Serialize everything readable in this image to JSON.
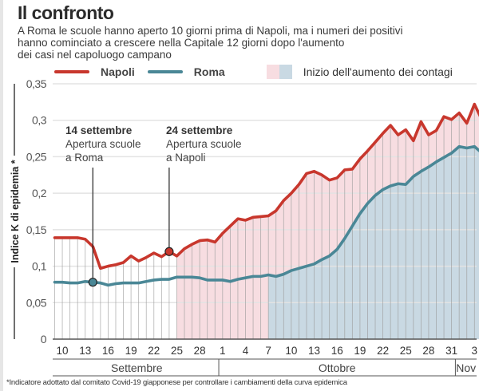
{
  "header": {
    "title": "Il confronto",
    "subtitle_lines": [
      "A Roma le scuole hanno aperto 10 giorni prima di Napoli, ma i numeri dei positivi",
      "hanno cominciato a crescere nella Capitale 12 giorni dopo l'aumento",
      "dei casi nel capoluogo campano"
    ]
  },
  "legend": {
    "napoli_label": "Napoli",
    "roma_label": "Roma",
    "shade_label": "Inizio dell'aumento dei contagi"
  },
  "colors": {
    "napoli": "#c8372d",
    "roma": "#4a8796",
    "napoli_shade": "#f7dde1",
    "roma_shade": "#c9d9e3",
    "grid": "#e3e3e3",
    "vgrid": "#9a9a9a"
  },
  "annotations": [
    {
      "date_label": "14 settembre",
      "line1": "Apertura scuole",
      "line2": "a Roma",
      "series": "Roma",
      "day_index": 5
    },
    {
      "date_label": "24 settembre",
      "line1": "Apertura scuole",
      "line2": "a Napoli",
      "series": "Napoli",
      "day_index": 15
    }
  ],
  "footnote": "*Indicatore adottato dal comitato Covid-19 giapponese per controllare i cambiamenti della curva epidemica",
  "chart_data": {
    "type": "line",
    "title": "Il confronto",
    "xlabel": "",
    "ylabel": "Indice K di epidemia *",
    "ylim": [
      0,
      0.35
    ],
    "yticks": [
      0,
      0.05,
      0.1,
      0.15,
      0.2,
      0.25,
      0.3,
      0.35
    ],
    "ytick_labels": [
      "0",
      "0,05",
      "0,1",
      "0,15",
      "0,2",
      "0,25",
      "0,3",
      "0,35"
    ],
    "x_start": "9 settembre",
    "x_end": "3 novembre",
    "xtick_labels": [
      "10",
      "13",
      "16",
      "19",
      "22",
      "25",
      "28",
      "1",
      "4",
      "7",
      "10",
      "13",
      "16",
      "19",
      "22",
      "25",
      "28",
      "31",
      "3"
    ],
    "xtick_day_index": [
      1,
      4,
      7,
      10,
      13,
      16,
      19,
      22,
      25,
      28,
      31,
      34,
      37,
      40,
      43,
      46,
      49,
      52,
      55
    ],
    "months": [
      {
        "label": "Settembre",
        "start_index": 0,
        "end_index": 21.5
      },
      {
        "label": "Ottobre",
        "start_index": 21.5,
        "end_index": 52.5
      },
      {
        "label": "Nov",
        "start_index": 52.5,
        "end_index": 56
      }
    ],
    "grid": true,
    "legend_position": "top",
    "shaded_regions": [
      {
        "series": "Napoli",
        "from_index": 16,
        "label": "Inizio dell'aumento dei contagi"
      },
      {
        "series": "Roma",
        "from_index": 28,
        "label": "Inizio dell'aumento dei contagi"
      }
    ],
    "series": [
      {
        "name": "Napoli",
        "values": [
          0.139,
          0.139,
          0.139,
          0.139,
          0.137,
          0.127,
          0.097,
          0.1,
          0.102,
          0.105,
          0.114,
          0.107,
          0.112,
          0.118,
          0.113,
          0.12,
          0.114,
          0.124,
          0.13,
          0.135,
          0.136,
          0.133,
          0.145,
          0.155,
          0.165,
          0.163,
          0.167,
          0.168,
          0.169,
          0.176,
          0.19,
          0.2,
          0.212,
          0.227,
          0.23,
          0.225,
          0.218,
          0.221,
          0.232,
          0.233,
          0.247,
          0.258,
          0.27,
          0.282,
          0.293,
          0.28,
          0.287,
          0.272,
          0.298,
          0.28,
          0.286,
          0.305,
          0.301,
          0.31,
          0.296,
          0.322,
          0.3,
          0.279
        ]
      },
      {
        "name": "Roma",
        "values": [
          0.078,
          0.078,
          0.077,
          0.077,
          0.079,
          0.078,
          0.077,
          0.074,
          0.076,
          0.077,
          0.077,
          0.077,
          0.079,
          0.081,
          0.082,
          0.082,
          0.085,
          0.085,
          0.085,
          0.084,
          0.081,
          0.081,
          0.081,
          0.079,
          0.082,
          0.084,
          0.086,
          0.086,
          0.088,
          0.086,
          0.089,
          0.094,
          0.097,
          0.1,
          0.103,
          0.109,
          0.114,
          0.123,
          0.138,
          0.155,
          0.172,
          0.186,
          0.197,
          0.205,
          0.21,
          0.213,
          0.212,
          0.223,
          0.23,
          0.236,
          0.243,
          0.249,
          0.255,
          0.264,
          0.262,
          0.264,
          0.255,
          0.251
        ]
      }
    ]
  }
}
